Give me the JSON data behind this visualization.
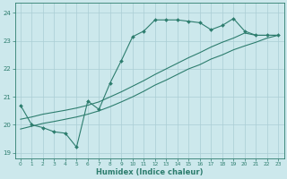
{
  "xlabel": "Humidex (Indice chaleur)",
  "ylabel": "",
  "bg_color": "#cce8ec",
  "grid_color": "#aacdd4",
  "line_color": "#2d7d6e",
  "xlim": [
    -0.5,
    23.5
  ],
  "ylim": [
    18.8,
    24.35
  ],
  "yticks": [
    19,
    20,
    21,
    22,
    23,
    24
  ],
  "xticks": [
    0,
    1,
    2,
    3,
    4,
    5,
    6,
    7,
    8,
    9,
    10,
    11,
    12,
    13,
    14,
    15,
    16,
    17,
    18,
    19,
    20,
    21,
    22,
    23
  ],
  "line1_x": [
    0,
    1,
    2,
    3,
    4,
    5,
    6,
    7,
    8,
    9,
    10,
    11,
    12,
    13,
    14,
    15,
    16,
    17,
    18,
    19,
    20,
    21,
    22,
    23
  ],
  "line1_y": [
    20.7,
    20.0,
    19.9,
    19.75,
    19.7,
    19.2,
    20.85,
    20.55,
    21.5,
    22.3,
    23.15,
    23.35,
    23.75,
    23.75,
    23.75,
    23.7,
    23.65,
    23.4,
    23.55,
    23.8,
    23.35,
    23.2,
    23.2,
    23.2
  ],
  "line2_x": [
    0,
    1,
    2,
    3,
    4,
    5,
    6,
    7,
    8,
    9,
    10,
    11,
    12,
    13,
    14,
    15,
    16,
    17,
    18,
    19,
    20,
    21,
    22,
    23
  ],
  "line2_y": [
    19.85,
    19.95,
    20.05,
    20.12,
    20.2,
    20.28,
    20.38,
    20.5,
    20.65,
    20.82,
    21.0,
    21.2,
    21.42,
    21.6,
    21.8,
    22.0,
    22.15,
    22.35,
    22.5,
    22.68,
    22.82,
    22.95,
    23.1,
    23.2
  ],
  "line3_x": [
    0,
    1,
    2,
    3,
    4,
    5,
    6,
    7,
    8,
    9,
    10,
    11,
    12,
    13,
    14,
    15,
    16,
    17,
    18,
    19,
    20,
    21,
    22,
    23
  ],
  "line3_y": [
    20.2,
    20.28,
    20.38,
    20.45,
    20.52,
    20.6,
    20.7,
    20.82,
    21.0,
    21.18,
    21.38,
    21.58,
    21.8,
    22.0,
    22.2,
    22.4,
    22.58,
    22.78,
    22.95,
    23.1,
    23.28,
    23.2,
    23.2,
    23.2
  ]
}
